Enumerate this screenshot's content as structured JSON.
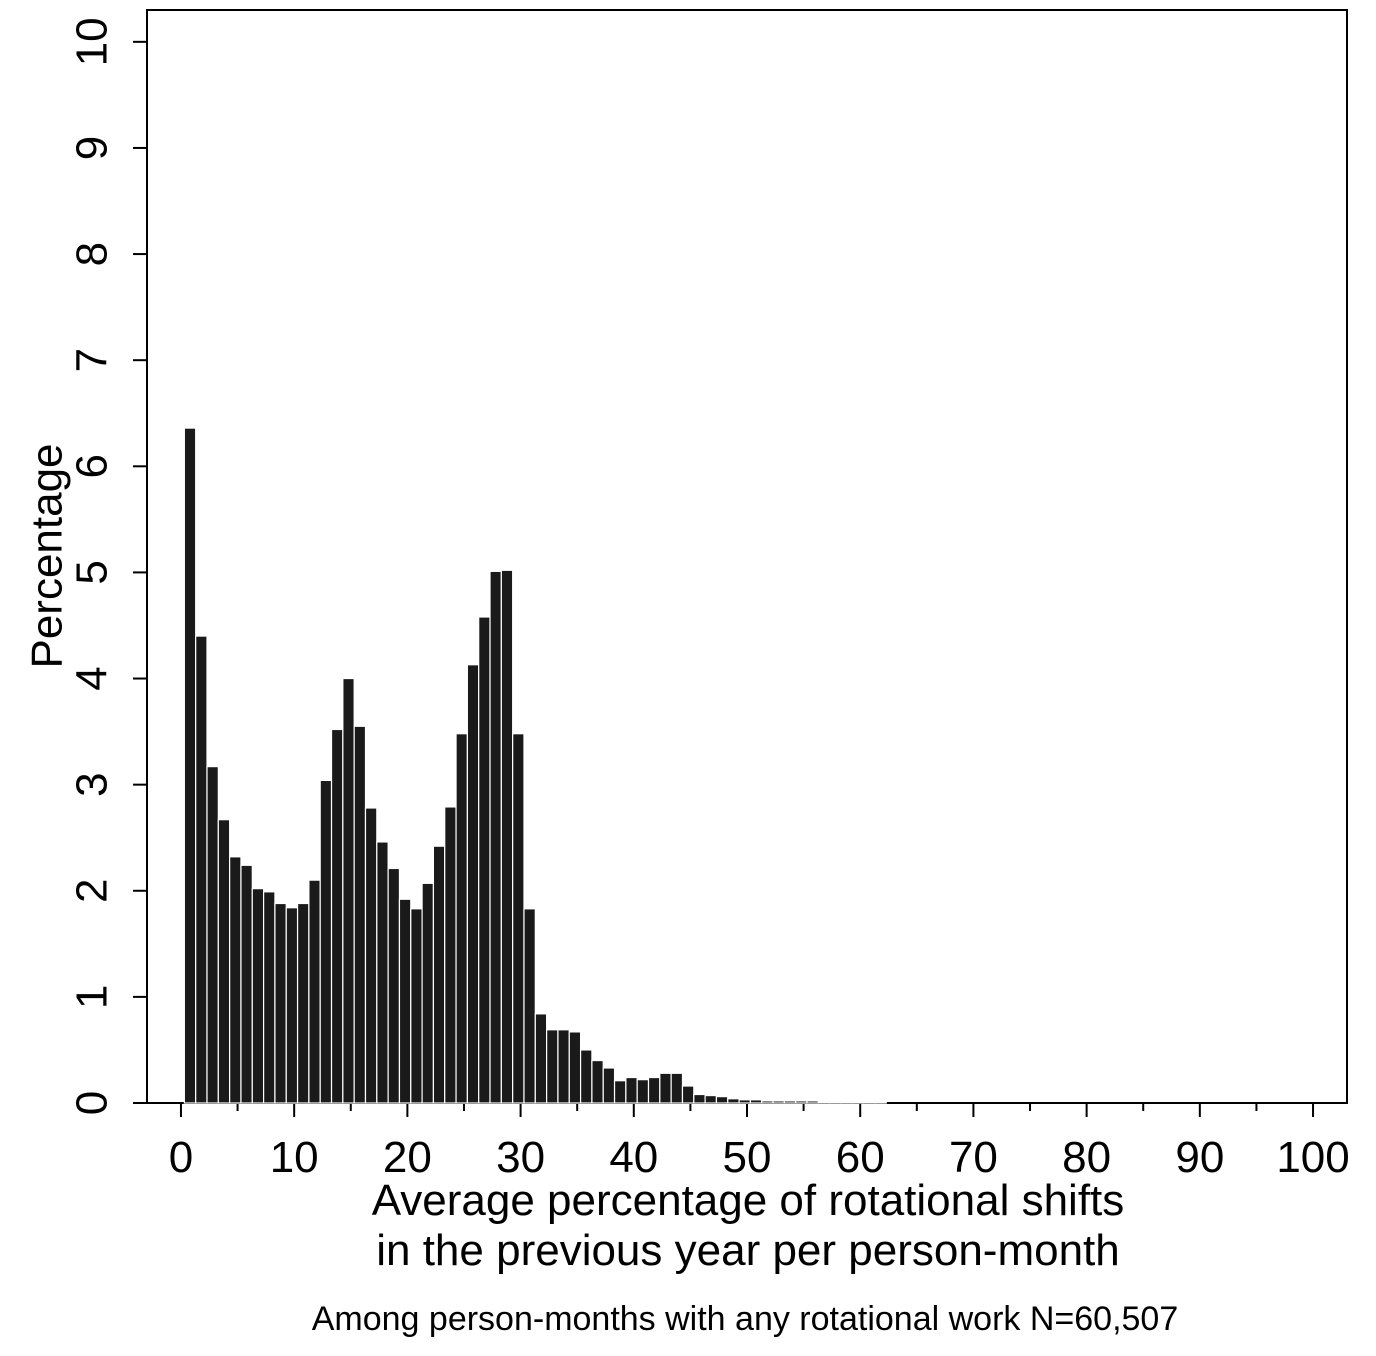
{
  "chart_data": {
    "type": "histogram",
    "y_label": "Percentage",
    "x_label_lines": [
      "Average percentage of rotational shifts",
      "in the previous year per person-month"
    ],
    "note": "Among person-months with any rotational work N=60,507",
    "bins": [
      0.3,
      1.3,
      2.3,
      3.3,
      4.3,
      5.3,
      6.3,
      7.3,
      8.3,
      9.3,
      10.3,
      11.3,
      12.3,
      13.3,
      14.3,
      15.3,
      16.3,
      17.3,
      18.3,
      19.3,
      20.3,
      21.3,
      22.3,
      23.3,
      24.3,
      25.3,
      26.3,
      27.3,
      28.3,
      29.3,
      30.3,
      31.3,
      32.3,
      33.3,
      34.3,
      35.3,
      36.3,
      37.3,
      38.3,
      39.3,
      40.3,
      41.3,
      42.3,
      43.3,
      44.3,
      45.3,
      46.3,
      47.3,
      48.3,
      49.3,
      50.3,
      51.3,
      52.3,
      53.3,
      54.3,
      55.3,
      56.3,
      57.3,
      58.3,
      59.3,
      60.3,
      61.3,
      62.3
    ],
    "values": [
      6.36,
      4.4,
      3.17,
      2.67,
      2.32,
      2.24,
      2.02,
      1.99,
      1.88,
      1.84,
      1.88,
      2.1,
      3.04,
      3.52,
      4.0,
      3.55,
      2.78,
      2.46,
      2.21,
      1.92,
      1.83,
      2.07,
      2.42,
      2.79,
      3.48,
      4.13,
      4.58,
      5.01,
      5.02,
      3.48,
      1.83,
      0.84,
      0.69,
      0.69,
      0.67,
      0.5,
      0.4,
      0.33,
      0.21,
      0.24,
      0.22,
      0.24,
      0.28,
      0.28,
      0.16,
      0.08,
      0.07,
      0.06,
      0.04,
      0.03,
      0.03,
      0.02,
      0.02,
      0.02,
      0.02,
      0.02,
      0.01,
      0.01,
      0.01,
      0.01,
      0.01,
      0.01
    ],
    "color": "#1a1a1a",
    "xlim": [
      -3,
      103
    ],
    "ylim": [
      0,
      10.3
    ],
    "xticks": [
      0,
      10,
      20,
      30,
      40,
      50,
      60,
      70,
      80,
      90,
      100
    ],
    "xticks_minor": [
      5,
      15,
      25,
      35,
      45,
      55,
      65,
      75,
      85,
      95
    ],
    "yticks": [
      0,
      1,
      2,
      3,
      4,
      5,
      6,
      7,
      8,
      9,
      10
    ]
  }
}
